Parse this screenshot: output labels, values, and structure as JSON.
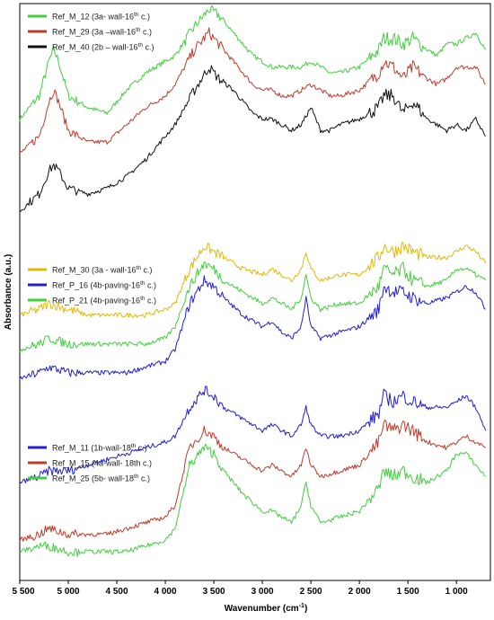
{
  "chart_data": {
    "type": "line",
    "xlabel": "Wavenumber (cm",
    "xlabel_sup": "-1",
    "xlabel_end": ")",
    "ylabel": "Absorbance (a.u.)",
    "xlim": [
      5500,
      650
    ],
    "x_reversed": true,
    "grid": false,
    "y_ticks_shown": false,
    "x_ticks": [
      {
        "value": 5500,
        "label": "5 500"
      },
      {
        "value": 5000,
        "label": "5 000"
      },
      {
        "value": 4500,
        "label": "4 500"
      },
      {
        "value": 4000,
        "label": "4 000"
      },
      {
        "value": 3500,
        "label": "3 500"
      },
      {
        "value": 3000,
        "label": "3 000"
      },
      {
        "value": 2500,
        "label": "2 500"
      },
      {
        "value": 2000,
        "label": "2 000"
      },
      {
        "value": 1500,
        "label": "1 500"
      },
      {
        "value": 1000,
        "label": "1 000"
      }
    ],
    "groups": [
      {
        "legend_position": "top-left",
        "series": [
          {
            "legend": {
              "pre": "Ref_M_12 (3a- wall-16",
              "sup": "th",
              "post": " c.)"
            },
            "color": "#3fd03a",
            "x": [
              5500,
              5300,
              5200,
              5150,
              5100,
              5000,
              4800,
              4600,
              4400,
              4200,
              4000,
              3900,
              3700,
              3550,
              3450,
              3300,
              3100,
              3000,
              2900,
              2800,
              2700,
              2600,
              2500,
              2400,
              2300,
              2200,
              2000,
              1800,
              1750,
              1650,
              1550,
              1450,
              1300,
              1200,
              1100,
              1000,
              900,
              800,
              700
            ],
            "y": [
              0.8,
              0.84,
              0.9,
              0.92,
              0.9,
              0.84,
              0.82,
              0.81,
              0.85,
              0.88,
              0.9,
              0.91,
              0.96,
              0.99,
              0.98,
              0.95,
              0.91,
              0.9,
              0.89,
              0.89,
              0.89,
              0.89,
              0.9,
              0.89,
              0.88,
              0.88,
              0.89,
              0.92,
              0.94,
              0.94,
              0.93,
              0.94,
              0.92,
              0.91,
              0.93,
              0.93,
              0.94,
              0.95,
              0.92
            ]
          },
          {
            "legend": {
              "pre": "Ref_M_29 (3a –wall-16",
              "sup": "th",
              "post": " c.)"
            },
            "color": "#c0392b",
            "x": [
              5500,
              5300,
              5200,
              5150,
              5100,
              5000,
              4800,
              4600,
              4400,
              4200,
              4000,
              3900,
              3700,
              3550,
              3450,
              3300,
              3100,
              3000,
              2900,
              2800,
              2700,
              2600,
              2500,
              2400,
              2300,
              2200,
              2000,
              1800,
              1750,
              1650,
              1550,
              1450,
              1300,
              1200,
              1100,
              1000,
              900,
              800,
              700
            ],
            "y": [
              0.74,
              0.77,
              0.83,
              0.85,
              0.83,
              0.78,
              0.76,
              0.76,
              0.79,
              0.82,
              0.84,
              0.86,
              0.92,
              0.95,
              0.93,
              0.9,
              0.86,
              0.85,
              0.85,
              0.84,
              0.84,
              0.85,
              0.86,
              0.85,
              0.84,
              0.84,
              0.85,
              0.88,
              0.9,
              0.89,
              0.87,
              0.89,
              0.87,
              0.86,
              0.87,
              0.89,
              0.89,
              0.89,
              0.86
            ]
          },
          {
            "legend": {
              "pre": "Ref_M_40 (2b – wall-16",
              "sup": "th",
              "post": " c.)"
            },
            "color": "#111111",
            "x": [
              5500,
              5300,
              5200,
              5150,
              5100,
              5000,
              4800,
              4600,
              4400,
              4200,
              4000,
              3900,
              3700,
              3550,
              3450,
              3300,
              3100,
              3000,
              2900,
              2800,
              2700,
              2600,
              2500,
              2400,
              2300,
              2200,
              2000,
              1800,
              1750,
              1650,
              1550,
              1450,
              1300,
              1200,
              1100,
              1000,
              900,
              800,
              700
            ],
            "y": [
              0.64,
              0.67,
              0.71,
              0.72,
              0.71,
              0.68,
              0.67,
              0.68,
              0.7,
              0.73,
              0.77,
              0.79,
              0.85,
              0.89,
              0.87,
              0.85,
              0.81,
              0.8,
              0.8,
              0.79,
              0.78,
              0.79,
              0.82,
              0.78,
              0.78,
              0.79,
              0.8,
              0.82,
              0.84,
              0.84,
              0.81,
              0.83,
              0.8,
              0.79,
              0.78,
              0.79,
              0.78,
              0.8,
              0.77
            ]
          }
        ]
      },
      {
        "legend_position": "middle-left",
        "series": [
          {
            "legend": {
              "pre": "Ref_M_30 (3a - wall-16",
              "sup": "th",
              "post": " c.)"
            },
            "color": "#e6b800",
            "x": [
              5500,
              5300,
              5200,
              5000,
              4800,
              4600,
              4400,
              4200,
              4000,
              3900,
              3750,
              3600,
              3500,
              3400,
              3200,
              3000,
              2900,
              2800,
              2700,
              2600,
              2550,
              2500,
              2400,
              2200,
              2000,
              1800,
              1750,
              1650,
              1550,
              1450,
              1300,
              1100,
              1000,
              900,
              800,
              700
            ],
            "y": [
              0.46,
              0.47,
              0.48,
              0.47,
              0.46,
              0.46,
              0.46,
              0.46,
              0.47,
              0.48,
              0.54,
              0.58,
              0.57,
              0.56,
              0.54,
              0.53,
              0.54,
              0.53,
              0.52,
              0.54,
              0.57,
              0.54,
              0.52,
              0.53,
              0.53,
              0.56,
              0.58,
              0.57,
              0.58,
              0.57,
              0.56,
              0.56,
              0.57,
              0.58,
              0.57,
              0.55
            ]
          },
          {
            "legend": {
              "pre": "Ref_P_16 (4b-paving-16",
              "sup": "th",
              "post": " c.)"
            },
            "color": "#1f1fd6",
            "x": [
              5500,
              5300,
              5200,
              5000,
              4800,
              4600,
              4400,
              4200,
              4000,
              3900,
              3750,
              3600,
              3500,
              3400,
              3200,
              3000,
              2900,
              2800,
              2700,
              2600,
              2550,
              2500,
              2400,
              2200,
              2000,
              1800,
              1750,
              1650,
              1550,
              1450,
              1300,
              1100,
              1000,
              900,
              800,
              700
            ],
            "y": [
              0.35,
              0.36,
              0.37,
              0.36,
              0.36,
              0.36,
              0.36,
              0.37,
              0.38,
              0.4,
              0.48,
              0.52,
              0.51,
              0.49,
              0.46,
              0.44,
              0.45,
              0.43,
              0.42,
              0.44,
              0.49,
              0.44,
              0.42,
              0.43,
              0.44,
              0.47,
              0.51,
              0.5,
              0.5,
              0.49,
              0.48,
              0.49,
              0.5,
              0.51,
              0.5,
              0.47
            ]
          },
          {
            "legend": {
              "pre": "Ref_P_21 (4b-paving-16",
              "sup": "th",
              "post": " c.)"
            },
            "color": "#3fd03a",
            "x": [
              5500,
              5300,
              5200,
              5000,
              4800,
              4600,
              4400,
              4200,
              4000,
              3900,
              3750,
              3600,
              3500,
              3400,
              3200,
              3000,
              2900,
              2800,
              2700,
              2600,
              2550,
              2500,
              2400,
              2200,
              2000,
              1800,
              1750,
              1650,
              1550,
              1450,
              1300,
              1100,
              1000,
              900,
              800,
              700
            ],
            "y": [
              0.4,
              0.41,
              0.42,
              0.41,
              0.41,
              0.41,
              0.41,
              0.41,
              0.42,
              0.44,
              0.51,
              0.55,
              0.54,
              0.52,
              0.5,
              0.48,
              0.49,
              0.48,
              0.47,
              0.49,
              0.53,
              0.49,
              0.47,
              0.48,
              0.48,
              0.51,
              0.54,
              0.53,
              0.54,
              0.52,
              0.51,
              0.52,
              0.54,
              0.54,
              0.53,
              0.52
            ]
          }
        ]
      },
      {
        "legend_position": "bottom-left",
        "series": [
          {
            "legend": {
              "pre": "Ref_M_11 (1b-wall-18",
              "sup": "th",
              "post": " c.)"
            },
            "color": "#1f1fd6",
            "x": [
              5500,
              5300,
              5200,
              5000,
              4800,
              4600,
              4400,
              4200,
              4000,
              3900,
              3750,
              3600,
              3500,
              3400,
              3200,
              3000,
              2900,
              2800,
              2700,
              2600,
              2550,
              2500,
              2400,
              2200,
              2000,
              1800,
              1750,
              1650,
              1550,
              1450,
              1300,
              1100,
              1000,
              900,
              800,
              700
            ],
            "y": [
              0.17,
              0.18,
              0.19,
              0.19,
              0.2,
              0.21,
              0.22,
              0.23,
              0.24,
              0.25,
              0.3,
              0.33,
              0.32,
              0.3,
              0.28,
              0.26,
              0.27,
              0.26,
              0.25,
              0.27,
              0.3,
              0.27,
              0.25,
              0.25,
              0.26,
              0.29,
              0.32,
              0.31,
              0.32,
              0.31,
              0.3,
              0.3,
              0.31,
              0.32,
              0.3,
              0.26
            ]
          },
          {
            "legend": {
              "pre": "Ref_M_15 (4a-wall- 18th c.)",
              "sup": "",
              "post": ""
            },
            "color": "#c0392b",
            "x": [
              5500,
              5300,
              5200,
              5000,
              4800,
              4600,
              4400,
              4200,
              4000,
              3900,
              3750,
              3600,
              3500,
              3400,
              3200,
              3000,
              2900,
              2800,
              2700,
              2600,
              2550,
              2500,
              2400,
              2200,
              2000,
              1800,
              1750,
              1650,
              1550,
              1450,
              1300,
              1100,
              1000,
              900,
              800,
              700
            ],
            "y": [
              0.07,
              0.08,
              0.09,
              0.08,
              0.08,
              0.08,
              0.09,
              0.1,
              0.11,
              0.13,
              0.23,
              0.26,
              0.25,
              0.23,
              0.21,
              0.19,
              0.2,
              0.19,
              0.18,
              0.2,
              0.23,
              0.2,
              0.18,
              0.19,
              0.2,
              0.24,
              0.27,
              0.26,
              0.27,
              0.26,
              0.24,
              0.23,
              0.24,
              0.25,
              0.24,
              0.23
            ]
          },
          {
            "legend": {
              "pre": "Ref_M_25 (5b- wall-18",
              "sup": "th",
              "post": " c.)"
            },
            "color": "#3fd03a",
            "x": [
              5500,
              5300,
              5200,
              5000,
              4800,
              4600,
              4400,
              4200,
              4000,
              3900,
              3750,
              3600,
              3500,
              3400,
              3200,
              3000,
              2900,
              2800,
              2700,
              2600,
              2550,
              2500,
              2400,
              2200,
              2000,
              1800,
              1750,
              1650,
              1550,
              1450,
              1300,
              1100,
              1000,
              900,
              800,
              700
            ],
            "y": [
              0.05,
              0.06,
              0.06,
              0.05,
              0.05,
              0.05,
              0.05,
              0.06,
              0.07,
              0.09,
              0.2,
              0.23,
              0.22,
              0.19,
              0.15,
              0.12,
              0.12,
              0.11,
              0.1,
              0.13,
              0.17,
              0.13,
              0.1,
              0.11,
              0.12,
              0.16,
              0.19,
              0.18,
              0.19,
              0.18,
              0.17,
              0.19,
              0.22,
              0.22,
              0.2,
              0.18
            ]
          }
        ]
      }
    ]
  }
}
